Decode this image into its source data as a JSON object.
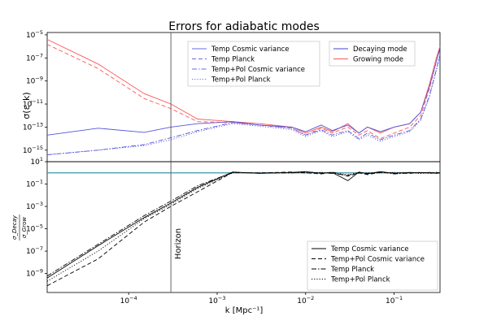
{
  "title": "Errors for adiabatic modes",
  "chart_data": [
    {
      "type": "line",
      "panel": "top",
      "xscale": "log",
      "yscale": "log",
      "xlim": [
        1.2e-05,
        0.33
      ],
      "ylim": [
        1e-16,
        1.6e-05
      ],
      "ylabel": "σ(ε_k)",
      "ytick_labels": [
        "10^-5",
        "10^-7",
        "10^-9",
        "10^-11",
        "10^-13",
        "10^-15"
      ],
      "ytick_values": [
        1e-05,
        1e-07,
        1e-09,
        1e-11,
        1e-13,
        1e-15
      ],
      "vline_x": 0.0003,
      "legends": [
        {
          "placement": "upper-middle",
          "entries": [
            {
              "label": "Temp Cosmic variance",
              "style": "solid",
              "color": "#6b6be0"
            },
            {
              "label": "Temp Planck",
              "style": "dashed",
              "color": "#6b6be0"
            },
            {
              "label": "Temp+Pol Cosmic variance",
              "style": "dashdot",
              "color": "#6b6be0"
            },
            {
              "label": "Temp+Pol Planck",
              "style": "dotted",
              "color": "#6b6be0"
            }
          ]
        },
        {
          "placement": "upper-right",
          "entries": [
            {
              "label": "Decaying mode",
              "style": "solid",
              "color": "#4444cc"
            },
            {
              "label": "Growing mode",
              "style": "solid",
              "color": "#ff5555"
            }
          ]
        }
      ],
      "series": [
        {
          "color": "#ff5555",
          "style": "solid",
          "points": [
            [
              1.2e-05,
              4e-06
            ],
            [
              4.5e-05,
              3e-08
            ],
            [
              0.00015,
              8e-11
            ],
            [
              0.0003,
              1e-11
            ],
            [
              0.0006,
              5e-13
            ],
            [
              0.0015,
              3e-13
            ],
            [
              0.003,
              2e-13
            ],
            [
              0.007,
              1e-13
            ],
            [
              0.01,
              3e-14
            ],
            [
              0.015,
              1e-13
            ],
            [
              0.02,
              4e-14
            ],
            [
              0.03,
              2e-13
            ],
            [
              0.04,
              3e-14
            ],
            [
              0.05,
              1e-13
            ],
            [
              0.07,
              3e-14
            ],
            [
              0.1,
              1e-13
            ],
            [
              0.15,
              2e-13
            ],
            [
              0.2,
              2e-12
            ],
            [
              0.25,
              5e-10
            ],
            [
              0.3,
              1e-07
            ],
            [
              0.33,
              1e-06
            ]
          ]
        },
        {
          "color": "#ff5555",
          "style": "dashed",
          "points": [
            [
              1.2e-05,
              1.5e-06
            ],
            [
              4.5e-05,
              1.2e-08
            ],
            [
              0.00015,
              3e-11
            ],
            [
              0.0003,
              4e-12
            ],
            [
              0.0006,
              3e-13
            ],
            [
              0.0015,
              2.5e-13
            ],
            [
              0.003,
              1.5e-13
            ],
            [
              0.007,
              8e-14
            ],
            [
              0.01,
              2e-14
            ],
            [
              0.015,
              8e-14
            ],
            [
              0.02,
              3e-14
            ],
            [
              0.03,
              1e-13
            ],
            [
              0.04,
              2e-14
            ],
            [
              0.05,
              5e-14
            ],
            [
              0.07,
              1e-14
            ],
            [
              0.1,
              3e-14
            ],
            [
              0.15,
              1e-13
            ],
            [
              0.2,
              1e-12
            ],
            [
              0.25,
              2e-10
            ],
            [
              0.3,
              5e-08
            ],
            [
              0.33,
              6e-07
            ]
          ]
        },
        {
          "color": "#5555dd",
          "style": "solid",
          "points": [
            [
              1.2e-05,
              2e-14
            ],
            [
              4.5e-05,
              8e-14
            ],
            [
              0.00015,
              3.5e-14
            ],
            [
              0.0003,
              1e-13
            ],
            [
              0.0006,
              2e-13
            ],
            [
              0.0015,
              3e-13
            ],
            [
              0.003,
              1.5e-13
            ],
            [
              0.007,
              1e-13
            ],
            [
              0.01,
              4e-14
            ],
            [
              0.015,
              1.5e-13
            ],
            [
              0.02,
              5e-14
            ],
            [
              0.03,
              1.5e-13
            ],
            [
              0.04,
              3e-14
            ],
            [
              0.05,
              1e-13
            ],
            [
              0.07,
              4e-14
            ],
            [
              0.1,
              1e-13
            ],
            [
              0.15,
              2e-13
            ],
            [
              0.2,
              2e-12
            ],
            [
              0.25,
              3e-10
            ],
            [
              0.3,
              5e-08
            ],
            [
              0.33,
              8e-07
            ]
          ]
        },
        {
          "color": "#5555dd",
          "style": "dashdot",
          "points": [
            [
              1.2e-05,
              4e-16
            ],
            [
              4.5e-05,
              1e-15
            ],
            [
              0.00015,
              3e-15
            ],
            [
              0.0003,
              1.2e-14
            ],
            [
              0.0006,
              5e-14
            ],
            [
              0.0015,
              2.5e-13
            ],
            [
              0.003,
              1.5e-13
            ],
            [
              0.007,
              8e-14
            ],
            [
              0.01,
              2e-14
            ],
            [
              0.015,
              6e-14
            ],
            [
              0.02,
              2e-14
            ],
            [
              0.03,
              5e-14
            ],
            [
              0.04,
              1e-14
            ],
            [
              0.05,
              3e-14
            ],
            [
              0.07,
              8e-15
            ],
            [
              0.1,
              2e-14
            ],
            [
              0.15,
              5e-14
            ],
            [
              0.2,
              5e-13
            ],
            [
              0.25,
              5e-11
            ],
            [
              0.3,
              1e-08
            ],
            [
              0.33,
              2e-07
            ]
          ]
        },
        {
          "color": "#5555dd",
          "style": "dotted",
          "points": [
            [
              1.2e-05,
              4e-16
            ],
            [
              4.5e-05,
              1e-15
            ],
            [
              0.00015,
              2.5e-15
            ],
            [
              0.0003,
              8e-15
            ],
            [
              0.0006,
              4e-14
            ],
            [
              0.0015,
              2e-13
            ],
            [
              0.003,
              1.2e-13
            ],
            [
              0.007,
              6e-14
            ],
            [
              0.01,
              1.5e-14
            ],
            [
              0.015,
              5e-14
            ],
            [
              0.02,
              1.5e-14
            ],
            [
              0.03,
              4e-14
            ],
            [
              0.04,
              8e-15
            ],
            [
              0.05,
              2e-14
            ],
            [
              0.07,
              6e-15
            ],
            [
              0.1,
              1.5e-14
            ],
            [
              0.15,
              4e-14
            ],
            [
              0.2,
              4e-13
            ],
            [
              0.25,
              4e-11
            ],
            [
              0.3,
              8e-09
            ],
            [
              0.33,
              1.5e-07
            ]
          ]
        }
      ]
    },
    {
      "type": "line",
      "panel": "bottom",
      "xscale": "log",
      "yscale": "log",
      "xlim": [
        1.2e-05,
        0.33
      ],
      "ylim": [
        2e-11,
        10
      ],
      "xlabel": "k [Mpc⁻¹]",
      "ylabel_num": "σ_Decay",
      "ylabel_den": "σ_Grow",
      "xtick_labels": [
        "10^-4",
        "10^-3",
        "10^-2",
        "10^-1"
      ],
      "xtick_values": [
        0.0001,
        0.001,
        0.01,
        0.1
      ],
      "ytick_labels": [
        "10^1",
        "10^-1",
        "10^-3",
        "10^-5",
        "10^-7",
        "10^-9"
      ],
      "ytick_values": [
        10,
        0.1,
        0.001,
        1e-05,
        1e-07,
        1e-09
      ],
      "hline_y": 1,
      "hline_color": "#3a9aa8",
      "vline_x": 0.0003,
      "vline_label": "Horizon",
      "legend": {
        "placement": "lower-right",
        "entries": [
          {
            "label": "Temp Cosmic variance",
            "style": "solid"
          },
          {
            "label": "Temp+Pol Cosmic variance",
            "style": "dashed"
          },
          {
            "label": "Temp Planck",
            "style": "dashdot"
          },
          {
            "label": "Temp+Pol Planck",
            "style": "dotted"
          }
        ]
      },
      "series": [
        {
          "style": "solid",
          "points": [
            [
              1.2e-05,
              4e-10
            ],
            [
              4.5e-05,
              3e-07
            ],
            [
              0.00015,
              0.0001
            ],
            [
              0.0003,
              0.002
            ],
            [
              0.0006,
              0.05
            ],
            [
              0.0015,
              1.2
            ],
            [
              0.003,
              0.9
            ],
            [
              0.007,
              1.1
            ],
            [
              0.01,
              1.3
            ],
            [
              0.015,
              0.9
            ],
            [
              0.02,
              1.1
            ],
            [
              0.03,
              0.2
            ],
            [
              0.04,
              1.2
            ],
            [
              0.05,
              0.8
            ],
            [
              0.07,
              1.3
            ],
            [
              0.1,
              0.9
            ],
            [
              0.15,
              1.1
            ],
            [
              0.2,
              1.0
            ],
            [
              0.25,
              1.1
            ],
            [
              0.3,
              0.9
            ],
            [
              0.33,
              1.0
            ]
          ]
        },
        {
          "style": "dashed",
          "points": [
            [
              1.2e-05,
              8e-11
            ],
            [
              4.5e-05,
              2e-08
            ],
            [
              0.00015,
              4e-05
            ],
            [
              0.0003,
              0.001
            ],
            [
              0.0006,
              0.02
            ],
            [
              0.0015,
              1.1
            ],
            [
              0.003,
              1.0
            ],
            [
              0.007,
              1.2
            ],
            [
              0.01,
              1.0
            ],
            [
              0.015,
              0.8
            ],
            [
              0.02,
              1.2
            ],
            [
              0.03,
              0.5
            ],
            [
              0.04,
              1.0
            ],
            [
              0.05,
              0.7
            ],
            [
              0.07,
              1.1
            ],
            [
              0.1,
              1.0
            ],
            [
              0.15,
              0.9
            ],
            [
              0.2,
              1.1
            ],
            [
              0.25,
              1.0
            ],
            [
              0.3,
              1.1
            ],
            [
              0.33,
              1.0
            ]
          ]
        },
        {
          "style": "dashdot",
          "points": [
            [
              1.2e-05,
              6e-10
            ],
            [
              4.5e-05,
              4e-07
            ],
            [
              0.00015,
              0.00015
            ],
            [
              0.0003,
              0.003
            ],
            [
              0.0006,
              0.07
            ],
            [
              0.0015,
              1.1
            ],
            [
              0.003,
              0.95
            ],
            [
              0.007,
              1.0
            ],
            [
              0.01,
              1.2
            ],
            [
              0.015,
              1.0
            ],
            [
              0.02,
              0.9
            ],
            [
              0.03,
              0.6
            ],
            [
              0.04,
              1.1
            ],
            [
              0.05,
              0.9
            ],
            [
              0.07,
              1.2
            ],
            [
              0.1,
              0.8
            ],
            [
              0.15,
              1.0
            ],
            [
              0.2,
              1.1
            ],
            [
              0.25,
              0.9
            ],
            [
              0.3,
              1.0
            ],
            [
              0.33,
              1.0
            ]
          ]
        },
        {
          "style": "dotted",
          "points": [
            [
              1.2e-05,
              2e-10
            ],
            [
              4.5e-05,
              1e-07
            ],
            [
              0.00015,
              8e-05
            ],
            [
              0.0003,
              0.0015
            ],
            [
              0.0006,
              0.04
            ],
            [
              0.0015,
              1.0
            ],
            [
              0.003,
              1.0
            ],
            [
              0.007,
              1.1
            ],
            [
              0.01,
              1.0
            ],
            [
              0.015,
              1.1
            ],
            [
              0.02,
              1.0
            ],
            [
              0.03,
              0.7
            ],
            [
              0.04,
              0.9
            ],
            [
              0.05,
              1.0
            ],
            [
              0.07,
              1.0
            ],
            [
              0.1,
              1.1
            ],
            [
              0.15,
              1.0
            ],
            [
              0.2,
              0.9
            ],
            [
              0.25,
              1.0
            ],
            [
              0.3,
              1.1
            ],
            [
              0.33,
              1.0
            ]
          ]
        }
      ]
    }
  ]
}
